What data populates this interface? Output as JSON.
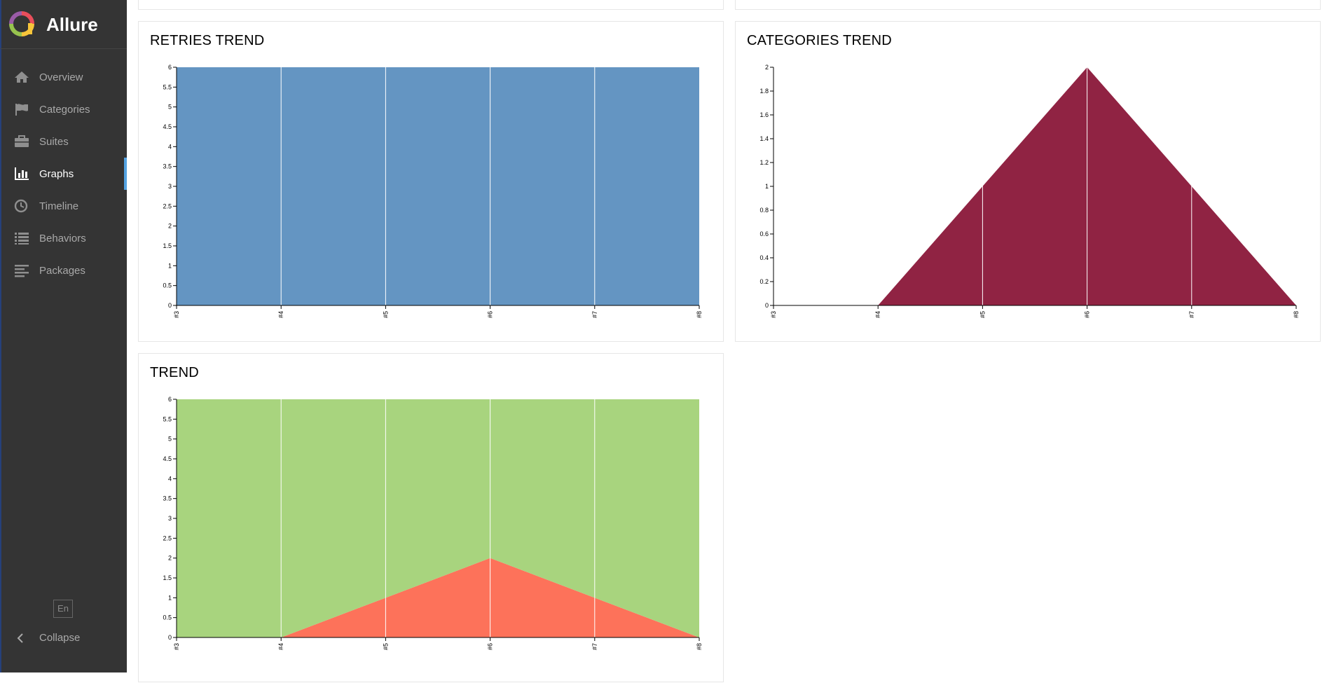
{
  "app": {
    "name": "Allure"
  },
  "sidebar": {
    "items": [
      {
        "label": "Overview",
        "icon": "home-icon"
      },
      {
        "label": "Categories",
        "icon": "flag-icon"
      },
      {
        "label": "Suites",
        "icon": "briefcase-icon"
      },
      {
        "label": "Graphs",
        "icon": "bar-chart-icon",
        "active": true
      },
      {
        "label": "Timeline",
        "icon": "clock-icon"
      },
      {
        "label": "Behaviors",
        "icon": "list-icon"
      },
      {
        "label": "Packages",
        "icon": "align-left-icon"
      }
    ],
    "language": "En",
    "collapse_label": "Collapse"
  },
  "colors": {
    "sidebar_bg": "#343434",
    "active_accent": "#54a3e2",
    "retries_fill": "#6495c2",
    "categories_fill": "#902343",
    "passed_fill": "#a8d47e",
    "failed_fill": "#fd725a"
  },
  "chart_data": [
    {
      "type": "area",
      "title": "RETRIES TREND",
      "categories": [
        "#3",
        "#4",
        "#5",
        "#6",
        "#7",
        "#8"
      ],
      "series": [
        {
          "values": [
            6,
            6,
            6,
            6,
            6,
            6
          ]
        }
      ],
      "ylim": [
        0,
        6
      ],
      "yticks": [
        "0",
        "0.5",
        "1",
        "1.5",
        "2",
        "2.5",
        "3",
        "3.5",
        "4",
        "4.5",
        "5",
        "5.5",
        "6"
      ]
    },
    {
      "type": "area",
      "title": "CATEGORIES TREND",
      "categories": [
        "#3",
        "#4",
        "#5",
        "#6",
        "#7",
        "#8"
      ],
      "series": [
        {
          "values": [
            0,
            0,
            1,
            2,
            1,
            0
          ]
        }
      ],
      "ylim": [
        0,
        2
      ],
      "yticks": [
        "0",
        "0.2",
        "0.4",
        "0.6",
        "0.8",
        "1",
        "1.2",
        "1.4",
        "1.6",
        "1.8",
        "2"
      ]
    },
    {
      "type": "area",
      "title": "TREND",
      "stacked": true,
      "categories": [
        "#3",
        "#4",
        "#5",
        "#6",
        "#7",
        "#8"
      ],
      "series": [
        {
          "values": [
            0,
            0,
            1,
            2,
            1,
            0
          ]
        },
        {
          "values": [
            6,
            6,
            5,
            4,
            5,
            6
          ]
        }
      ],
      "ylim": [
        0,
        6
      ],
      "yticks": [
        "0",
        "0.5",
        "1",
        "1.5",
        "2",
        "2.5",
        "3",
        "3.5",
        "4",
        "4.5",
        "5",
        "5.5",
        "6"
      ]
    }
  ]
}
